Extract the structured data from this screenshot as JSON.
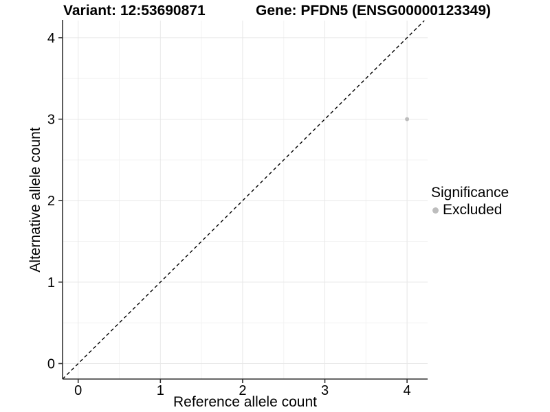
{
  "chart_data": {
    "type": "scatter",
    "titles": [
      "Variant: 12:53690871",
      "Gene: PFDN5 (ENSG00000123349)"
    ],
    "xlabel": "Reference allele count",
    "ylabel": "Alternative allele count",
    "xlim": [
      -0.19,
      4.25
    ],
    "ylim": [
      -0.19,
      4.21
    ],
    "xticks": [
      0,
      1,
      2,
      3,
      4
    ],
    "yticks": [
      0,
      1,
      2,
      3,
      4
    ],
    "grid": "major+minor",
    "points": [
      {
        "x": 4,
        "y": 3,
        "series": "Excluded"
      }
    ],
    "reference_line": {
      "type": "identity",
      "style": "dashed",
      "from": -0.19,
      "to": 4.21,
      "color": "#000000"
    },
    "legend": {
      "title": "Significance",
      "position": "right",
      "items": [
        {
          "label": "Excluded",
          "color": "#bdbdbd"
        }
      ]
    },
    "colors": {
      "grid_major": "#e7e7e7",
      "grid_minor": "#f3f3f3",
      "axis": "#333333",
      "point": "#bdbdbd",
      "text": "#000000"
    }
  }
}
